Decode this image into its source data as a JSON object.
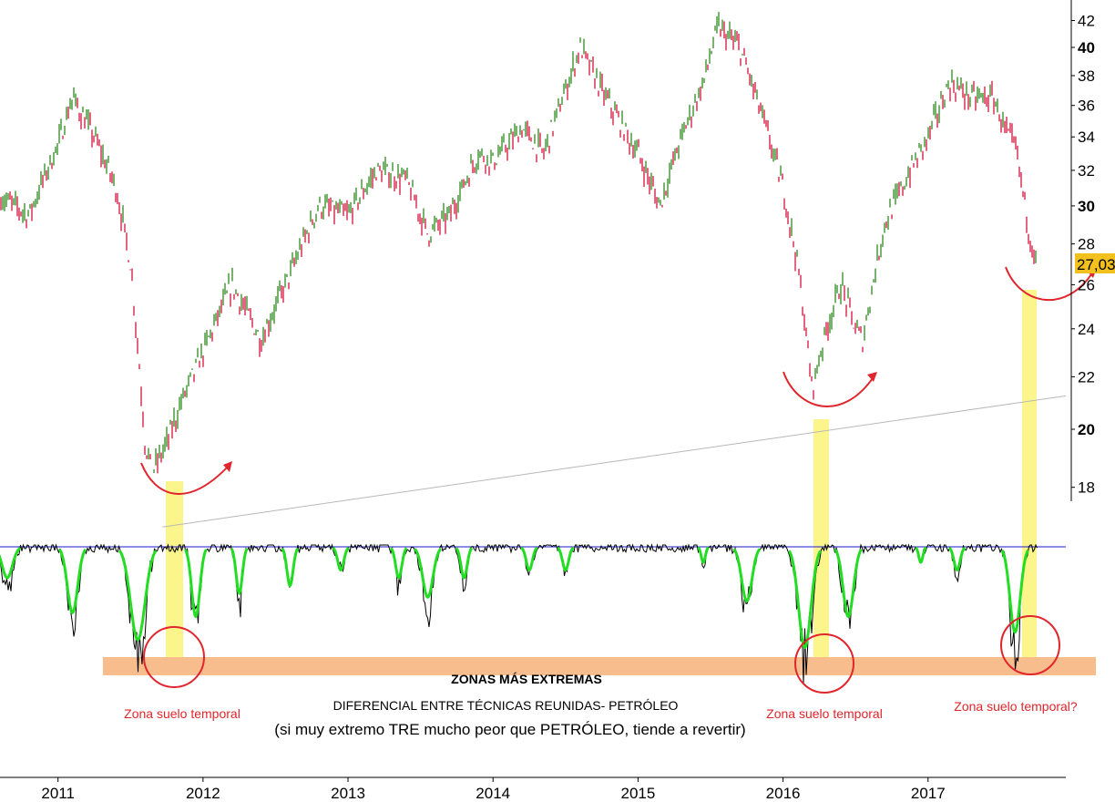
{
  "chart_data": [
    {
      "type": "line",
      "panel": "price",
      "series": [],
      "x": [
        "2010.6",
        "2010.8",
        "2011.0",
        "2011.1",
        "2011.25",
        "2011.4",
        "2011.5",
        "2011.6",
        "2011.65",
        "2011.75",
        "2011.85",
        "2012.0",
        "2012.2",
        "2012.4",
        "2012.6",
        "2012.8",
        "2013.0",
        "2013.2",
        "2013.4",
        "2013.55",
        "2013.7",
        "2013.9",
        "2014.0",
        "2014.2",
        "2014.35",
        "2014.5",
        "2014.6",
        "2014.75",
        "2014.9",
        "2015.0",
        "2015.15",
        "2015.3",
        "2015.45",
        "2015.55",
        "2015.7",
        "2015.85",
        "2016.0",
        "2016.1",
        "2016.2",
        "2016.3",
        "2016.4",
        "2016.5",
        "2016.55",
        "2016.7",
        "2016.85",
        "2017.0",
        "2017.15",
        "2017.3",
        "2017.45",
        "2017.55",
        "2017.6",
        "2017.7",
        "2017.75"
      ],
      "values": [
        30.5,
        29.5,
        33.5,
        36.5,
        34,
        31,
        27,
        19.5,
        18.5,
        19.5,
        21,
        23,
        26,
        23.5,
        26.5,
        30,
        29.5,
        32,
        31.5,
        28.5,
        29.5,
        33,
        32.5,
        34.5,
        33,
        37,
        40,
        37,
        34.5,
        33,
        30,
        34,
        37.5,
        41.5,
        40,
        35.5,
        31,
        27,
        21.5,
        24,
        26,
        24,
        23.5,
        29,
        31.5,
        34,
        37.5,
        36.5,
        36.5,
        34,
        33.5,
        28.5,
        27.03
      ],
      "last_value_label": "27,03",
      "ylim": [
        16.5,
        42.5
      ],
      "y_scale": "log",
      "y_ticks": [
        "42",
        "40",
        "38",
        "36",
        "34",
        "32",
        "30",
        "28",
        "26",
        "24",
        "22",
        "20",
        "18"
      ],
      "y_ticks_bold": [
        "40",
        "30",
        "20"
      ],
      "x_ticks": [
        "2011",
        "2012",
        "2013",
        "2014",
        "2015",
        "2016",
        "2017"
      ],
      "trendline": {
        "from": [
          2011.72,
          16.75
        ],
        "to": [
          2017.95,
          21.25
        ]
      },
      "grid": false
    },
    {
      "type": "line",
      "panel": "indicator",
      "series": [],
      "annotations": {
        "band_label": "ZONAS MÁS EXTREMAS",
        "title": "DIFERENCIAL ENTRE TÉCNICAS REUNIDAS- PETRÓLEO",
        "subtitle": "(si muy extremo TRE mucho peor que PETRÓLEO, tiende a revertir)",
        "zones": [
          "Zona suelo temporal",
          "Zona suelo temporal",
          "Zona suelo temporal?"
        ]
      }
    }
  ],
  "colors": {
    "up_bar": "#2f8a1f",
    "down_bar": "#d4143c",
    "highlight": "#fbf58c",
    "extreme_band": "#f8bd8c",
    "annotation": "#e0262c",
    "oscillator_smooth": "#22dd22",
    "oscillator_raw": "#000000",
    "baseline": "#1a1acc",
    "last_value_box": "#f2c11d",
    "trendline": "#b8b8b8"
  }
}
